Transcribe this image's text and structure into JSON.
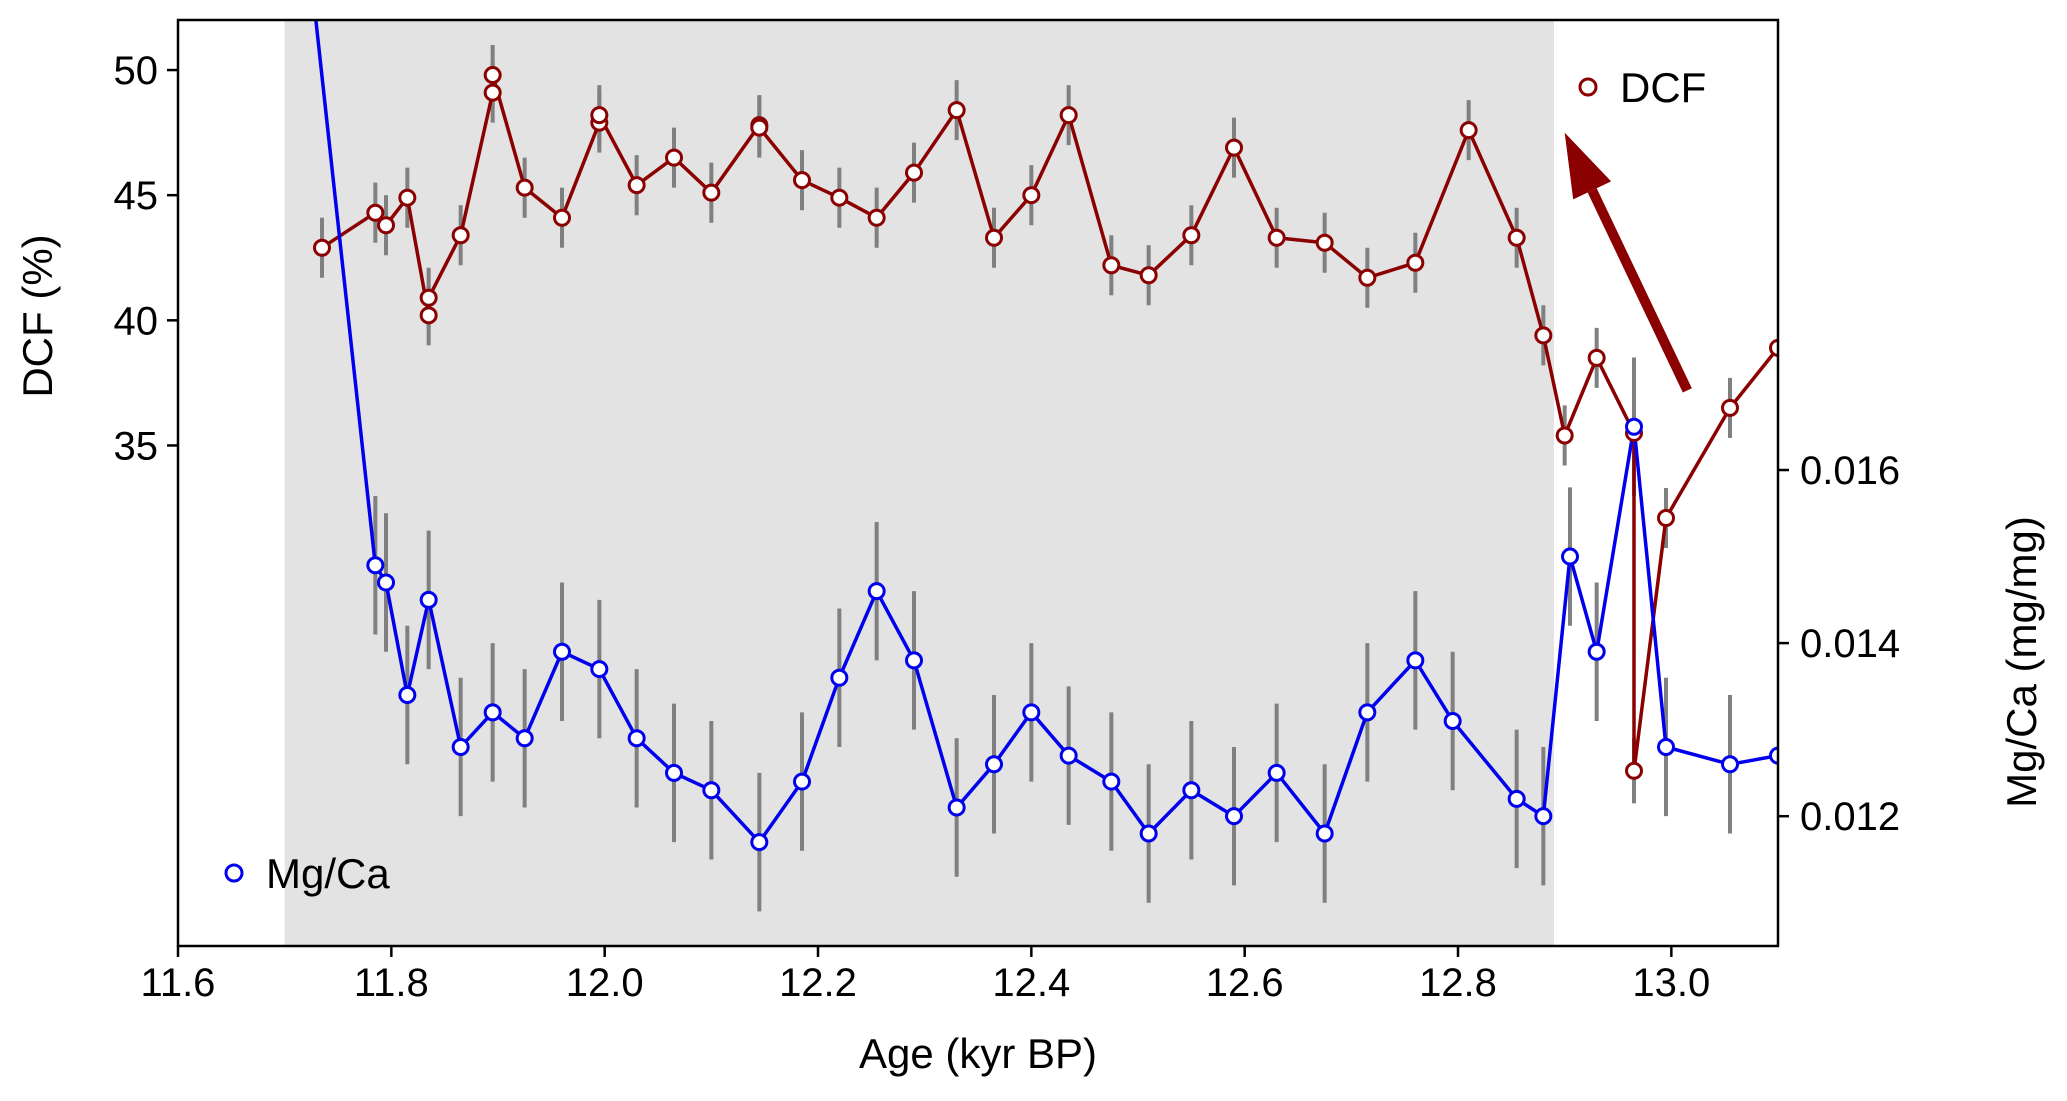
{
  "chart_data": {
    "type": "line",
    "xlabel": "Age (kyr BP)",
    "ylabel_left": "DCF (%)",
    "ylabel_right": "Mg/Ca (mg/mg)",
    "xlim": [
      11.6,
      13.1
    ],
    "ylim_left": [
      15,
      52
    ],
    "ylim_right": [
      0.0105,
      0.0212
    ],
    "x_ticks": [
      11.6,
      11.8,
      12.0,
      12.2,
      12.4,
      12.6,
      12.8,
      13.0
    ],
    "x_tick_labels": [
      "11.6",
      "11.8",
      "12.0",
      "12.2",
      "12.4",
      "12.6",
      "12.8",
      "13.0"
    ],
    "y_left_ticks": [
      35,
      40,
      45,
      50
    ],
    "y_left_tick_labels": [
      "35",
      "40",
      "45",
      "50"
    ],
    "y_right_ticks": [
      0.012,
      0.014,
      0.016
    ],
    "y_right_tick_labels": [
      "0.012",
      "0.014",
      "0.016"
    ],
    "shaded_region": {
      "x_start": 11.7,
      "x_end": 12.89,
      "color": "#e3e3e3"
    },
    "arrow": {
      "from": [
        13.015,
        37.2
      ],
      "to": [
        12.9,
        47.5
      ],
      "color": "#8b0000"
    },
    "series": [
      {
        "name": "DCF",
        "axis": "left",
        "color": "#8b0000",
        "legend_position": "top-right",
        "x": [
          11.735,
          11.785,
          11.795,
          11.815,
          11.835,
          11.835,
          11.865,
          11.895,
          11.895,
          11.925,
          11.96,
          11.995,
          11.995,
          12.03,
          12.065,
          12.1,
          12.145,
          12.145,
          12.185,
          12.22,
          12.255,
          12.29,
          12.33,
          12.365,
          12.4,
          12.435,
          12.475,
          12.51,
          12.55,
          12.59,
          12.63,
          12.675,
          12.715,
          12.76,
          12.81,
          12.855,
          12.88,
          12.9,
          12.93,
          12.965,
          12.965,
          12.995,
          13.055,
          13.1
        ],
        "values": [
          42.9,
          44.3,
          43.8,
          44.9,
          40.2,
          40.9,
          43.4,
          49.1,
          49.8,
          45.3,
          44.1,
          47.9,
          48.2,
          45.4,
          46.5,
          45.1,
          47.8,
          47.7,
          45.6,
          44.9,
          44.1,
          45.9,
          48.4,
          43.3,
          45.0,
          48.2,
          42.2,
          41.8,
          43.4,
          46.9,
          43.3,
          43.1,
          41.7,
          42.3,
          47.6,
          43.3,
          39.4,
          35.4,
          38.5,
          35.5,
          22.0,
          32.1,
          36.5,
          38.9
        ],
        "error": [
          1.2,
          1.2,
          1.2,
          1.2,
          1.2,
          1.2,
          1.2,
          1.2,
          1.2,
          1.2,
          1.2,
          1.2,
          1.2,
          1.2,
          1.2,
          1.2,
          1.2,
          1.2,
          1.2,
          1.2,
          1.2,
          1.2,
          1.2,
          1.2,
          1.2,
          1.2,
          1.2,
          1.2,
          1.2,
          1.2,
          1.2,
          1.2,
          1.2,
          1.2,
          1.2,
          1.2,
          1.2,
          1.2,
          1.2,
          1.2,
          1.3,
          1.2,
          1.2,
          0
        ]
      },
      {
        "name": "Mg/Ca",
        "axis": "right",
        "color": "#0000ee",
        "legend_position": "bottom-left",
        "x": [
          11.7,
          11.785,
          11.795,
          11.815,
          11.835,
          11.865,
          11.895,
          11.925,
          11.96,
          11.995,
          12.03,
          12.065,
          12.1,
          12.145,
          12.185,
          12.22,
          12.255,
          12.29,
          12.33,
          12.365,
          12.4,
          12.435,
          12.475,
          12.51,
          12.55,
          12.59,
          12.63,
          12.675,
          12.715,
          12.76,
          12.795,
          12.855,
          12.88,
          12.905,
          12.93,
          12.965,
          12.995,
          13.055,
          13.1
        ],
        "values": [
          0.0245,
          0.0149,
          0.0147,
          0.0134,
          0.0145,
          0.0128,
          0.0132,
          0.0129,
          0.0139,
          0.0137,
          0.0129,
          0.0125,
          0.0123,
          0.0117,
          0.0124,
          0.0136,
          0.0146,
          0.0138,
          0.0121,
          0.0126,
          0.0132,
          0.0127,
          0.0124,
          0.0118,
          0.0123,
          0.012,
          0.0125,
          0.0118,
          0.0132,
          0.0138,
          0.0131,
          0.0122,
          0.012,
          0.015,
          0.0139,
          0.0165,
          0.0128,
          0.0126,
          0.0127
        ],
        "error": [
          0,
          0.0008,
          0.0008,
          0.0008,
          0.0008,
          0.0008,
          0.0008,
          0.0008,
          0.0008,
          0.0008,
          0.0008,
          0.0008,
          0.0008,
          0.0008,
          0.0008,
          0.0008,
          0.0008,
          0.0008,
          0.0008,
          0.0008,
          0.0008,
          0.0008,
          0.0008,
          0.0008,
          0.0008,
          0.0008,
          0.0008,
          0.0008,
          0.0008,
          0.0008,
          0.0008,
          0.0008,
          0.0008,
          0.0008,
          0.0008,
          0.0008,
          0.0008,
          0.0008,
          0
        ]
      }
    ]
  }
}
